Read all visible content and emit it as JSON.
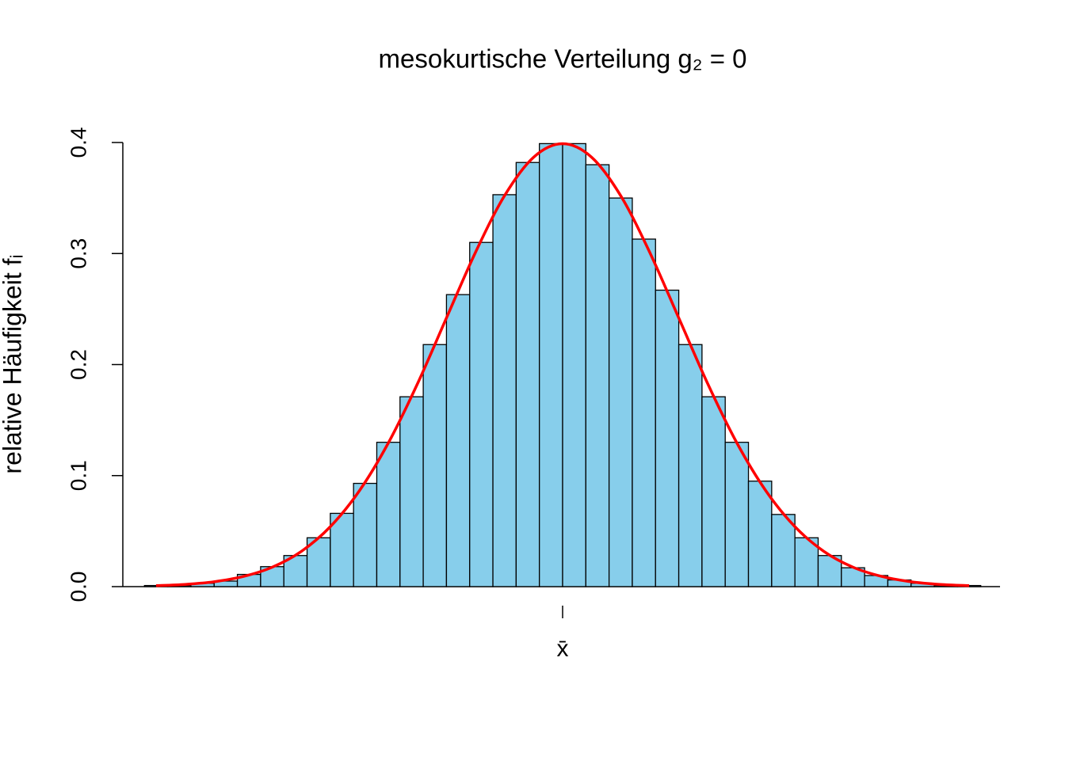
{
  "chart_data": {
    "type": "histogram",
    "title": "mesokurtische Verteilung g₂ = 0",
    "ylabel": "relative Häufigkeit fᵢ",
    "bins": [
      -3.6,
      -3.4,
      -3.2,
      -3.0,
      -2.8,
      -2.6,
      -2.4,
      -2.2,
      -2.0,
      -1.8,
      -1.6,
      -1.4,
      -1.2,
      -1.0,
      -0.8,
      -0.6,
      -0.4,
      -0.2,
      0,
      0.2,
      0.4,
      0.6,
      0.8,
      1.0,
      1.2,
      1.4,
      1.6,
      1.8,
      2.0,
      2.2,
      2.4,
      2.6,
      2.8,
      3.0,
      3.2,
      3.4,
      3.6
    ],
    "values": [
      0.001,
      0.001,
      0.003,
      0.005,
      0.011,
      0.018,
      0.028,
      0.044,
      0.066,
      0.093,
      0.13,
      0.171,
      0.218,
      0.263,
      0.31,
      0.353,
      0.382,
      0.399,
      0.399,
      0.38,
      0.35,
      0.313,
      0.267,
      0.218,
      0.171,
      0.13,
      0.095,
      0.065,
      0.044,
      0.028,
      0.017,
      0.01,
      0.006,
      0.003,
      0.001,
      0.001
    ],
    "color": "#87ceeb",
    "curve_x": [
      -3.5,
      -3.25,
      -3.0,
      -2.75,
      -2.5,
      -2.25,
      -2.0,
      -1.75,
      -1.5,
      -1.25,
      -1.0,
      -0.75,
      -0.5,
      -0.25,
      0,
      0.25,
      0.5,
      0.75,
      1.0,
      1.25,
      1.5,
      1.75,
      2.0,
      2.25,
      2.5,
      2.75,
      3.0,
      3.25,
      3.5
    ],
    "curve_y": [
      0.0009,
      0.002,
      0.0044,
      0.0091,
      0.0175,
      0.0317,
      0.054,
      0.0863,
      0.1295,
      0.1826,
      0.242,
      0.3011,
      0.3521,
      0.3867,
      0.3989,
      0.3867,
      0.3521,
      0.3011,
      0.242,
      0.1826,
      0.1295,
      0.0863,
      0.054,
      0.0317,
      0.0175,
      0.0091,
      0.0044,
      0.002,
      0.0009
    ],
    "curve_color": "#ff0000",
    "xlim": [
      -3.8,
      3.8
    ],
    "xticks": [
      {
        "value": 0,
        "label": "x̄"
      }
    ],
    "ylim": [
      0,
      0.4
    ],
    "yticks": [
      {
        "value": 0,
        "label": "0.0"
      },
      0.1,
      0.2,
      0.3,
      0.4
    ]
  }
}
